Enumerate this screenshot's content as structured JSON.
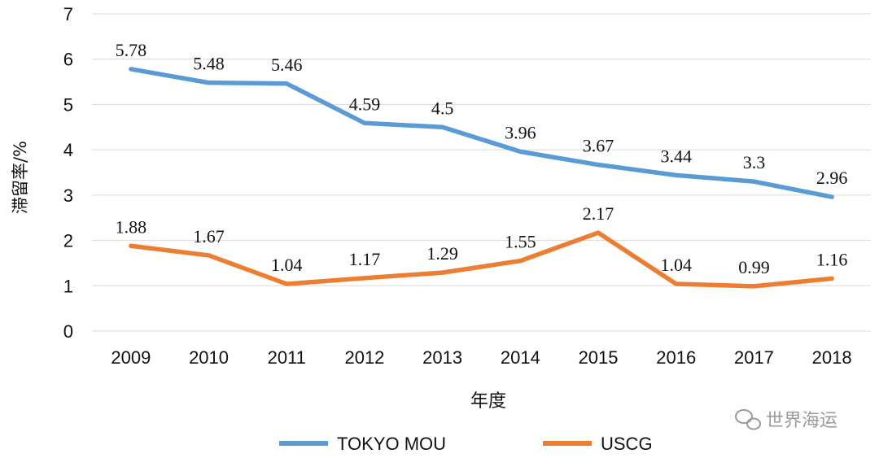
{
  "chart_data": {
    "type": "line",
    "title": "",
    "xlabel": "年度",
    "ylabel": "滞留率/%",
    "ylim": [
      0,
      7
    ],
    "yticks": [
      "0",
      "1",
      "2",
      "3",
      "4",
      "5",
      "6",
      "7"
    ],
    "grid": true,
    "legend": "bottom",
    "categories": [
      "2009",
      "2010",
      "2011",
      "2012",
      "2013",
      "2014",
      "2015",
      "2016",
      "2017",
      "2018"
    ],
    "series": [
      {
        "name": "TOKYO MOU",
        "color": "#5B9BD5",
        "values": [
          5.78,
          5.48,
          5.46,
          4.59,
          4.5,
          3.96,
          3.67,
          3.44,
          3.3,
          2.96
        ],
        "labels": [
          "5.78",
          "5.48",
          "5.46",
          "4.59",
          "4.5",
          "3.96",
          "3.67",
          "3.44",
          "3.3",
          "2.96"
        ]
      },
      {
        "name": "USCG",
        "color": "#ED7D31",
        "values": [
          1.88,
          1.67,
          1.04,
          1.17,
          1.29,
          1.55,
          2.17,
          1.04,
          0.99,
          1.16
        ],
        "labels": [
          "1.88",
          "1.67",
          "1.04",
          "1.17",
          "1.29",
          "1.55",
          "2.17",
          "1.04",
          "0.99",
          "1.16"
        ]
      }
    ]
  },
  "watermark": {
    "text": "世界海运",
    "icon": "wechat-icon"
  }
}
